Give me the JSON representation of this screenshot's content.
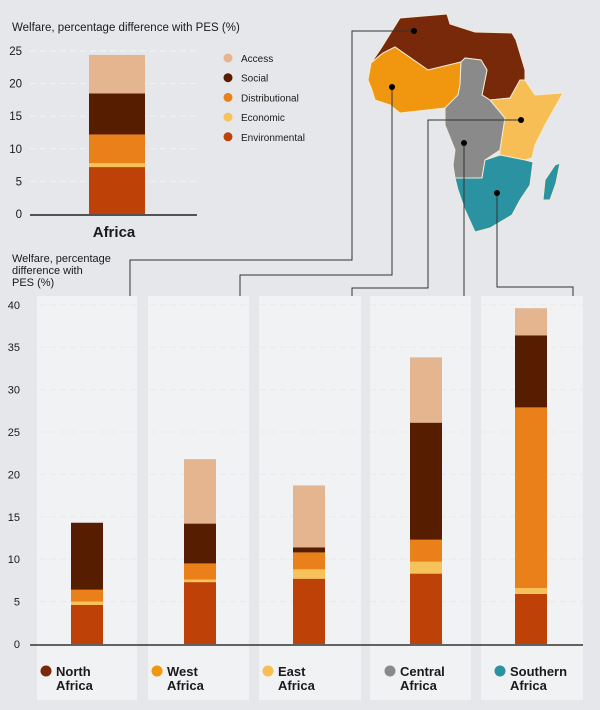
{
  "colors": {
    "Access": "#e4b58f",
    "Social": "#561d00",
    "Distributional": "#ea801a",
    "Economic": "#f6c35a",
    "Environmental": "#be4208",
    "north": "#78290a",
    "west": "#f0960f",
    "east": "#f6be55",
    "central": "#8a8a8a",
    "southern": "#2a92a0"
  },
  "chart_data": [
    {
      "type": "bar",
      "stacked": true,
      "title": "Welfare, percentage difference with PES (%)",
      "ylabel": "Welfare, percentage difference with PES (%)",
      "ylim": [
        0,
        25
      ],
      "yticks": [
        0,
        5,
        10,
        15,
        20,
        25
      ],
      "categories": [
        "Africa"
      ],
      "legend": "right",
      "series": [
        {
          "name": "Environmental",
          "values": [
            7.2
          ]
        },
        {
          "name": "Economic",
          "values": [
            0.6
          ]
        },
        {
          "name": "Distributional",
          "values": [
            4.4
          ]
        },
        {
          "name": "Social",
          "values": [
            6.3
          ]
        },
        {
          "name": "Access",
          "values": [
            5.9
          ]
        }
      ]
    },
    {
      "type": "bar",
      "stacked": true,
      "ylabel": "Welfare, percentage difference with PES (%)",
      "ylabel_lines": [
        "Welfare, percentage",
        "difference with",
        "PES (%)"
      ],
      "ylim": [
        0,
        40
      ],
      "yticks": [
        0,
        5,
        10,
        15,
        20,
        25,
        30,
        35,
        40
      ],
      "categories": [
        "North Africa",
        "West Africa",
        "East Africa",
        "Central Africa",
        "Southern Africa"
      ],
      "category_lines": [
        [
          "North",
          "Africa"
        ],
        [
          "West",
          "Africa"
        ],
        [
          "East",
          "Africa"
        ],
        [
          "Central",
          "Africa"
        ],
        [
          "Southern",
          "Africa"
        ]
      ],
      "category_colors": [
        "north",
        "west",
        "east",
        "central",
        "southern"
      ],
      "series": [
        {
          "name": "Environmental",
          "values": [
            4.6,
            7.3,
            7.7,
            8.3,
            5.9
          ]
        },
        {
          "name": "Economic",
          "values": [
            0.4,
            0.3,
            1.1,
            1.4,
            0.7
          ]
        },
        {
          "name": "Distributional",
          "values": [
            1.4,
            1.9,
            2.0,
            2.6,
            21.3
          ]
        },
        {
          "name": "Social",
          "values": [
            7.9,
            4.7,
            0.6,
            13.8,
            8.5
          ]
        },
        {
          "name": "Access",
          "values": [
            0,
            7.6,
            7.3,
            7.7,
            3.2
          ]
        }
      ]
    }
  ],
  "legend_order": [
    "Access",
    "Social",
    "Distributional",
    "Economic",
    "Environmental"
  ]
}
